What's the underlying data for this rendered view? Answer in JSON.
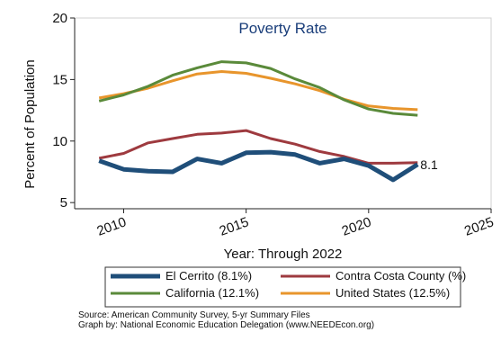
{
  "chart_data": {
    "type": "line",
    "title": "Poverty Rate",
    "xlabel": "Year: Through 2022",
    "ylabel": "Percent of Population",
    "xlim": [
      2008,
      2025
    ],
    "ylim": [
      4.5,
      20
    ],
    "x_ticks": [
      2010,
      2015,
      2020,
      2025
    ],
    "y_ticks": [
      5,
      10,
      15,
      20
    ],
    "grid": false,
    "legend_position": "bottom",
    "x": [
      2009,
      2010,
      2011,
      2012,
      2013,
      2014,
      2015,
      2016,
      2017,
      2018,
      2019,
      2020,
      2021,
      2022
    ],
    "series": [
      {
        "name": "El Cerrito (8.1%)",
        "color": "#1f4e79",
        "values": [
          8.4,
          7.7,
          7.55,
          7.5,
          8.55,
          8.2,
          9.05,
          9.1,
          8.9,
          8.2,
          8.55,
          8.0,
          6.85,
          8.1
        ]
      },
      {
        "name": "Contra Costa County (%)",
        "color": "#9e3a3f",
        "values": [
          8.6,
          9.0,
          9.85,
          10.2,
          10.55,
          10.65,
          10.85,
          10.2,
          9.75,
          9.15,
          8.75,
          8.2,
          8.2,
          8.25
        ]
      },
      {
        "name": "California (12.1%)",
        "color": "#5a8a3a",
        "values": [
          13.25,
          13.75,
          14.45,
          15.35,
          15.95,
          16.45,
          16.35,
          15.9,
          15.05,
          14.35,
          13.35,
          12.6,
          12.25,
          12.1
        ]
      },
      {
        "name": "United States (12.5%)",
        "color": "#e8952c",
        "values": [
          13.5,
          13.85,
          14.3,
          14.9,
          15.45,
          15.65,
          15.5,
          15.1,
          14.65,
          14.1,
          13.4,
          12.85,
          12.65,
          12.55
        ]
      }
    ],
    "end_label": "8.1",
    "notes": [
      "Source: American Community Survey, 5-yr Summary Files",
      "Graph by: National Economic Education Delegation (www.NEEDEcon.org)"
    ]
  }
}
